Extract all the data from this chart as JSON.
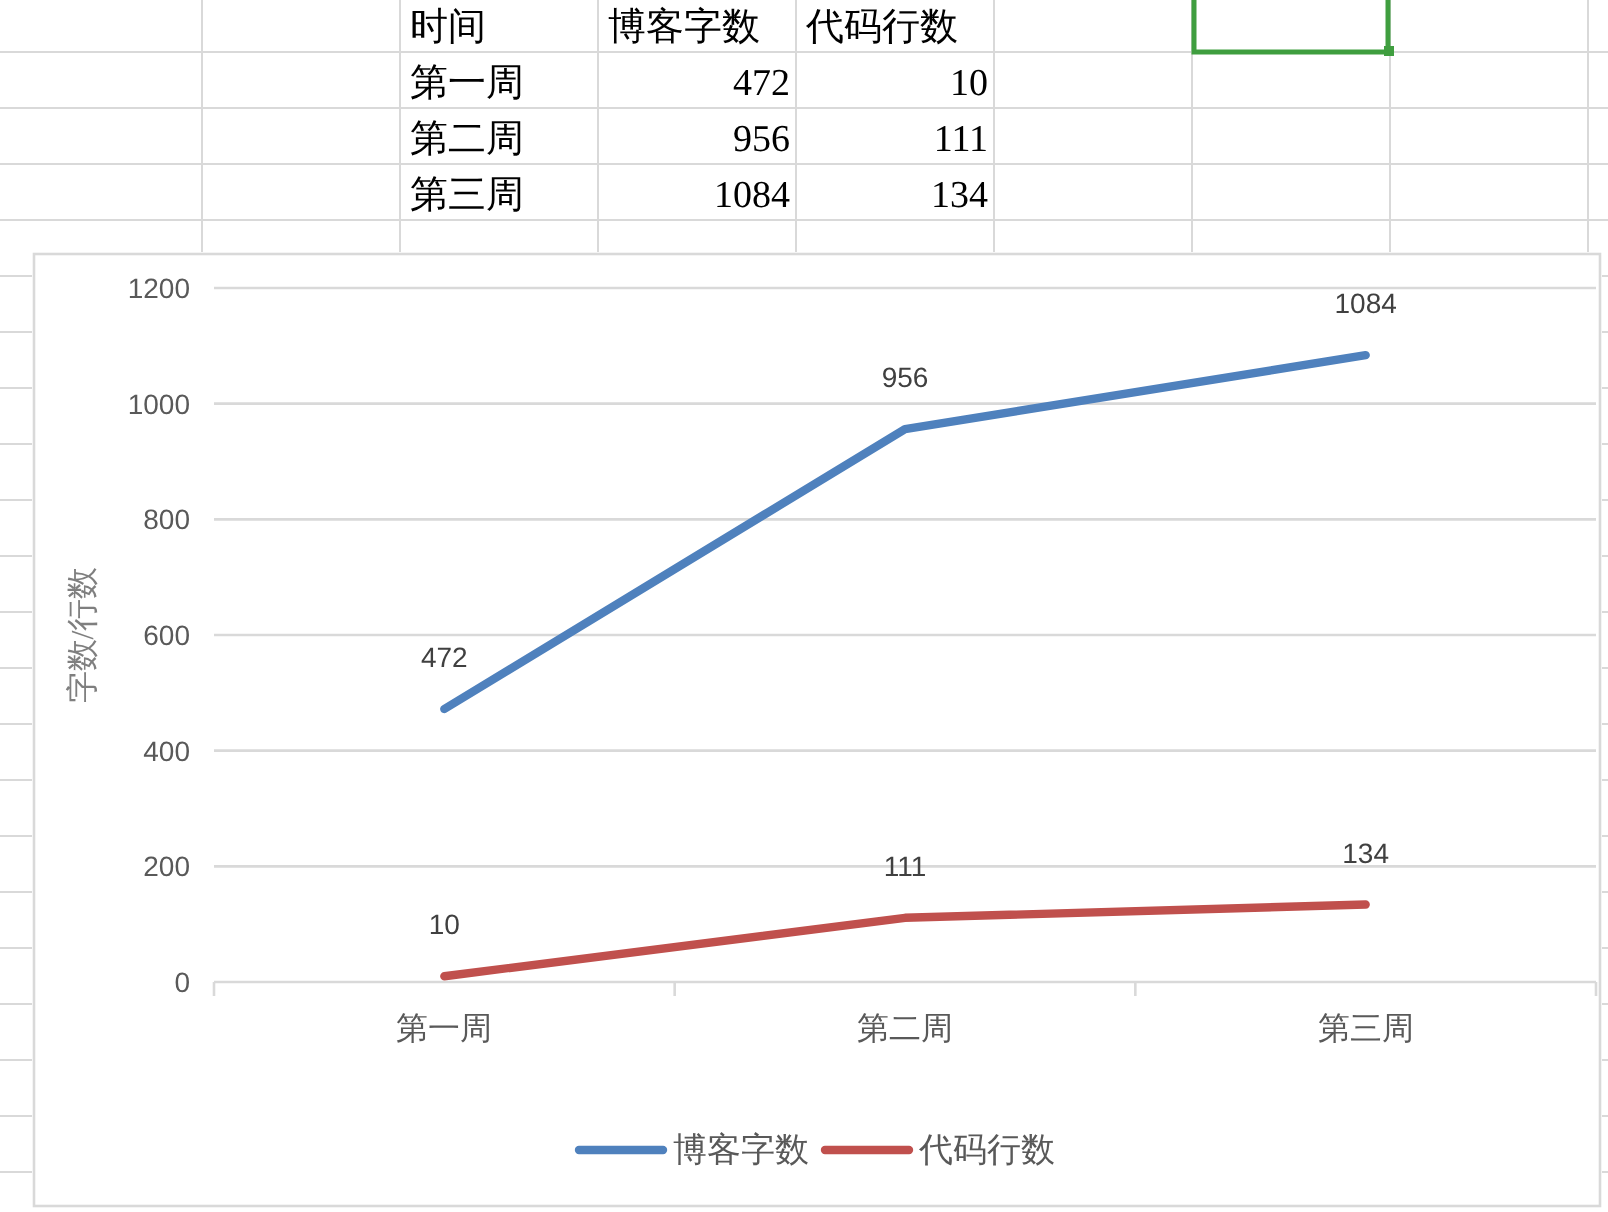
{
  "chart_data": [
    {
      "type": "other",
      "annotations": [
        "时间"
      ],
      "categories": [
        "第一周",
        "第二周",
        "第三周"
      ],
      "data_labels": true,
      "series": [
        {
          "name": "博客字数",
          "values": [
            472,
            956,
            1084
          ]
        },
        {
          "name": "代码行数",
          "values": [
            10,
            111,
            134
          ]
        }
      ]
    },
    {
      "type": "line",
      "categories": [
        "第一周",
        "第二周",
        "第三周"
      ],
      "series": [
        {
          "name": "博客字数",
          "color": "#4f81bd",
          "values": [
            472,
            956,
            1084
          ]
        },
        {
          "name": "代码行数",
          "color": "#c0504d",
          "values": [
            10,
            111,
            134
          ]
        }
      ],
      "ylabel": "字数/行数",
      "ylim": [
        0,
        1200
      ],
      "yticks": [
        0,
        200,
        400,
        600,
        800,
        1000,
        1200
      ],
      "grid": "y",
      "legend": "bottom",
      "data_labels": true
    }
  ]
}
